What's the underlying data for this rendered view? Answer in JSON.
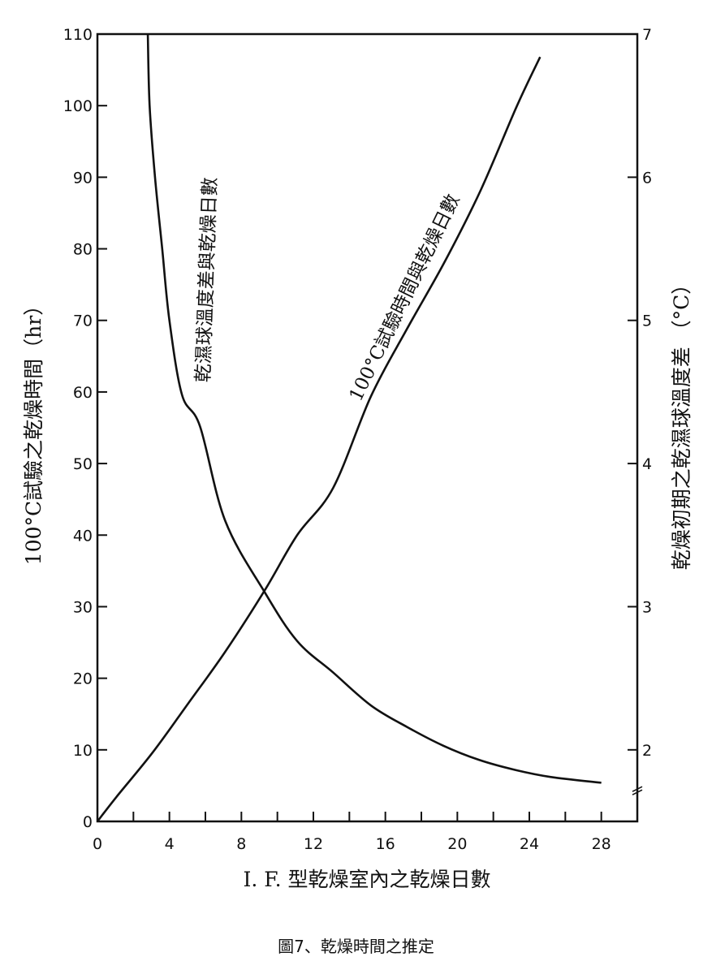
{
  "chart_data": {
    "type": "line",
    "caption": "圖7、乾燥時間之推定",
    "xlabel": "I. F. 型乾燥室內之乾燥日數",
    "ylabel_left": "100°C試驗之乾燥時間（hr）",
    "ylabel_right": "乾燥初期之乾濕球溫度差 （°C）",
    "xlim": [
      0,
      30
    ],
    "ylim_left": [
      0,
      110
    ],
    "ylim_right": [
      1.5,
      7
    ],
    "x_ticks": [
      "0",
      "4",
      "8",
      "12",
      "16",
      "20",
      "24",
      "28"
    ],
    "x_tick_values": [
      0,
      4,
      8,
      12,
      16,
      20,
      24,
      28
    ],
    "x_minor_step": 2,
    "y_left_ticks": [
      "0",
      "10",
      "20",
      "30",
      "40",
      "50",
      "60",
      "70",
      "80",
      "90",
      "100",
      "110"
    ],
    "y_left_tick_values": [
      0,
      10,
      20,
      30,
      40,
      50,
      60,
      70,
      80,
      90,
      100,
      110
    ],
    "y_right_ticks": [
      "2",
      "3",
      "4",
      "5",
      "6",
      "7"
    ],
    "y_right_tick_values": [
      2,
      3,
      4,
      5,
      6,
      7
    ],
    "right_axis_break": 1.72,
    "grid": false,
    "series": [
      {
        "name": "100°C試驗時間與乾燥日數",
        "axis": "left",
        "x": [
          0,
          1.05,
          3.06,
          5.05,
          7.1,
          9.3,
          11.1,
          13.1,
          15.2,
          17.2,
          19.3,
          21.3,
          23.3,
          24.6
        ],
        "y": [
          0,
          3.4,
          9.6,
          16.5,
          23.7,
          32.3,
          40,
          46.6,
          59.4,
          68.8,
          78.2,
          88.2,
          99.9,
          106.8
        ]
      },
      {
        "name": "乾濕球溫度差與乾燥日數",
        "axis": "right",
        "x": [
          2.8,
          2.9,
          3.2,
          3.6,
          4.0,
          4.7,
          5.7,
          7.1,
          9.3,
          11.1,
          13.1,
          15.2,
          17.2,
          19.2,
          21.2,
          23.2,
          25.2,
          28
        ],
        "y": [
          7.0,
          6.5,
          6.0,
          5.5,
          5.0,
          4.48,
          4.26,
          3.6,
          3.1,
          2.76,
          2.54,
          2.31,
          2.16,
          2.03,
          1.93,
          1.86,
          1.81,
          1.77
        ]
      }
    ]
  }
}
